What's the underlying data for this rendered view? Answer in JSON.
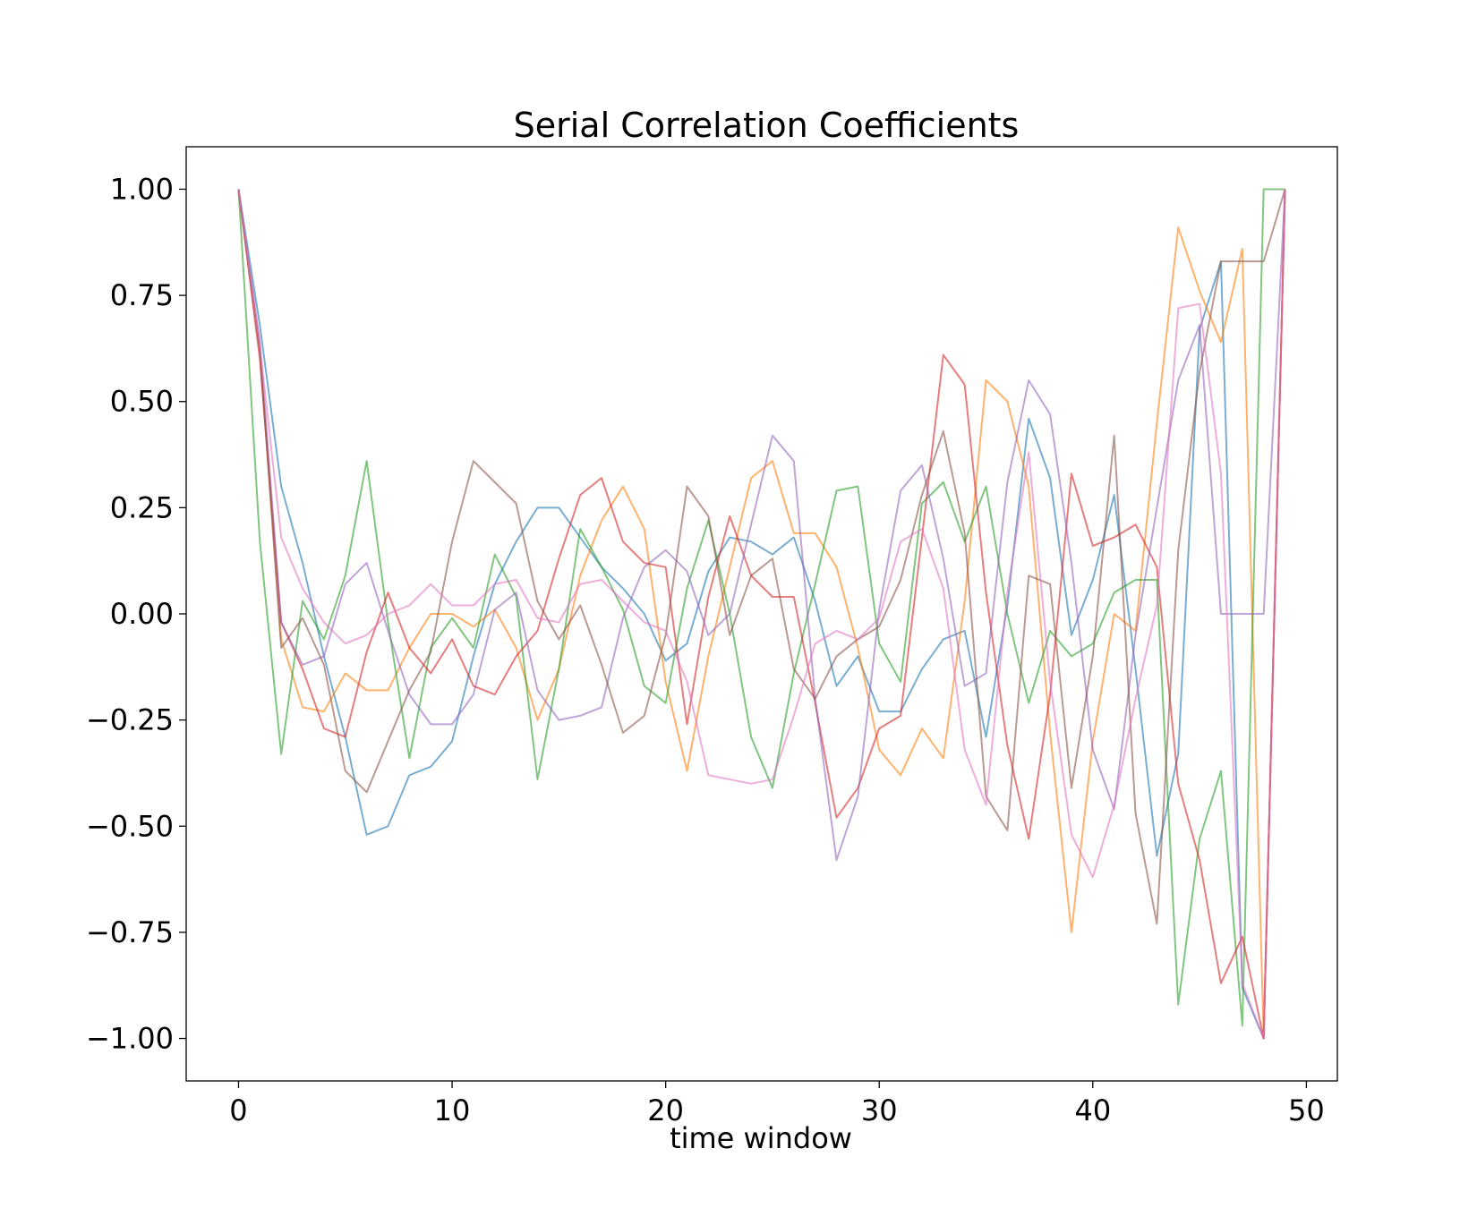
{
  "chart_data": {
    "type": "line",
    "title": "Serial Correlation Coefficients",
    "xlabel": "time window",
    "ylabel": "",
    "xlim": [
      -2.45,
      51.45
    ],
    "ylim": [
      -1.1,
      1.1
    ],
    "xticks": [
      0,
      10,
      20,
      30,
      40,
      50
    ],
    "xtick_labels": [
      "0",
      "10",
      "20",
      "30",
      "40",
      "50"
    ],
    "yticks": [
      1.0,
      0.75,
      0.5,
      0.25,
      0.0,
      -0.25,
      -0.5,
      -0.75,
      -1.0
    ],
    "ytick_labels": [
      "1.00",
      "0.75",
      "0.50",
      "0.25",
      "0.00",
      "−0.25",
      "−0.50",
      "−0.75",
      "−1.00"
    ],
    "grid": false,
    "legend": "none",
    "x": [
      0,
      1,
      2,
      3,
      4,
      5,
      6,
      7,
      8,
      9,
      10,
      11,
      12,
      13,
      14,
      15,
      16,
      17,
      18,
      19,
      20,
      21,
      22,
      23,
      24,
      25,
      26,
      27,
      28,
      29,
      30,
      31,
      32,
      33,
      34,
      35,
      36,
      37,
      38,
      39,
      40,
      41,
      42,
      43,
      44,
      45,
      46,
      47,
      48,
      49
    ],
    "series": [
      {
        "color": "#1f77b4",
        "values": [
          1.0,
          0.68,
          0.3,
          0.12,
          -0.1,
          -0.29,
          -0.52,
          -0.5,
          -0.38,
          -0.36,
          -0.3,
          -0.1,
          0.07,
          0.17,
          0.25,
          0.25,
          0.18,
          0.11,
          0.06,
          0.0,
          -0.11,
          -0.07,
          0.1,
          0.18,
          0.17,
          0.14,
          0.18,
          0.03,
          -0.17,
          -0.1,
          -0.23,
          -0.23,
          -0.13,
          -0.06,
          -0.04,
          -0.29,
          0.02,
          0.46,
          0.32,
          -0.05,
          0.08,
          0.28,
          -0.13,
          -0.57,
          -0.33,
          0.67,
          0.83,
          -0.88,
          -1.0,
          1.0
        ]
      },
      {
        "color": "#ff7f0e",
        "values": [
          1.0,
          0.62,
          -0.06,
          -0.22,
          -0.23,
          -0.14,
          -0.18,
          -0.18,
          -0.08,
          0.0,
          0.0,
          -0.03,
          0.01,
          -0.08,
          -0.25,
          -0.13,
          0.09,
          0.22,
          0.3,
          0.2,
          -0.16,
          -0.37,
          -0.1,
          0.11,
          0.32,
          0.36,
          0.19,
          0.19,
          0.11,
          -0.08,
          -0.32,
          -0.38,
          -0.27,
          -0.34,
          0.03,
          0.55,
          0.5,
          0.3,
          -0.28,
          -0.75,
          -0.3,
          0.0,
          -0.04,
          0.45,
          0.91,
          0.76,
          0.64,
          0.86,
          -1.0,
          1.0
        ]
      },
      {
        "color": "#2ca02c",
        "values": [
          1.0,
          0.17,
          -0.33,
          0.03,
          -0.06,
          0.09,
          0.36,
          -0.02,
          -0.34,
          -0.08,
          -0.01,
          -0.08,
          0.14,
          0.04,
          -0.39,
          -0.13,
          0.2,
          0.11,
          0.01,
          -0.17,
          -0.21,
          0.06,
          0.22,
          0.0,
          -0.29,
          -0.41,
          -0.14,
          0.07,
          0.29,
          0.3,
          -0.07,
          -0.16,
          0.26,
          0.31,
          0.17,
          0.3,
          0.0,
          -0.21,
          -0.04,
          -0.1,
          -0.07,
          0.05,
          0.08,
          0.08,
          -0.92,
          -0.53,
          -0.37,
          -0.97,
          1.0,
          1.0
        ]
      },
      {
        "color": "#d62728",
        "values": [
          1.0,
          0.6,
          -0.02,
          -0.13,
          -0.27,
          -0.29,
          -0.09,
          0.05,
          -0.08,
          -0.14,
          -0.06,
          -0.17,
          -0.19,
          -0.1,
          -0.04,
          0.13,
          0.28,
          0.32,
          0.17,
          0.12,
          0.11,
          -0.26,
          0.04,
          0.23,
          0.09,
          0.04,
          0.04,
          -0.21,
          -0.48,
          -0.41,
          -0.27,
          -0.24,
          0.18,
          0.61,
          0.54,
          0.05,
          -0.31,
          -0.53,
          -0.19,
          0.33,
          0.16,
          0.18,
          0.21,
          0.11,
          -0.4,
          -0.58,
          -0.87,
          -0.76,
          -1.0,
          1.0
        ]
      },
      {
        "color": "#9467bd",
        "values": [
          1.0,
          0.64,
          -0.02,
          -0.12,
          -0.1,
          0.07,
          0.12,
          -0.04,
          -0.19,
          -0.26,
          -0.26,
          -0.19,
          0.01,
          0.05,
          -0.18,
          -0.25,
          -0.24,
          -0.22,
          -0.01,
          0.11,
          0.15,
          0.1,
          -0.05,
          0.0,
          0.21,
          0.42,
          0.36,
          -0.2,
          -0.58,
          -0.43,
          0.01,
          0.29,
          0.35,
          0.13,
          -0.17,
          -0.14,
          0.31,
          0.55,
          0.47,
          0.12,
          -0.32,
          -0.46,
          -0.05,
          0.25,
          0.55,
          0.68,
          0.0,
          0.0,
          0.0,
          1.0
        ]
      },
      {
        "color": "#8c564b",
        "values": [
          1.0,
          0.62,
          -0.08,
          -0.01,
          -0.12,
          -0.37,
          -0.42,
          -0.3,
          -0.18,
          -0.09,
          0.17,
          0.36,
          0.31,
          0.26,
          0.03,
          -0.06,
          0.02,
          -0.12,
          -0.28,
          -0.24,
          -0.05,
          0.3,
          0.23,
          -0.05,
          0.09,
          0.13,
          -0.13,
          -0.2,
          -0.1,
          -0.06,
          -0.03,
          0.08,
          0.28,
          0.43,
          0.19,
          -0.43,
          -0.51,
          0.09,
          0.07,
          -0.41,
          -0.1,
          0.42,
          -0.47,
          -0.73,
          0.15,
          0.57,
          0.83,
          0.83,
          0.83,
          1.0
        ]
      },
      {
        "color": "#e377c2",
        "values": [
          1.0,
          0.63,
          0.18,
          0.06,
          -0.02,
          -0.07,
          -0.05,
          0.0,
          0.02,
          0.07,
          0.02,
          0.02,
          0.07,
          0.08,
          -0.01,
          -0.02,
          0.07,
          0.08,
          0.03,
          -0.02,
          -0.04,
          -0.16,
          -0.38,
          -0.39,
          -0.4,
          -0.39,
          -0.24,
          -0.07,
          -0.04,
          -0.06,
          -0.01,
          0.17,
          0.2,
          0.06,
          -0.32,
          -0.45,
          0.05,
          0.38,
          -0.16,
          -0.52,
          -0.62,
          -0.45,
          -0.2,
          0.02,
          0.72,
          0.73,
          0.33,
          -0.87,
          -1.0,
          1.0
        ]
      }
    ]
  }
}
